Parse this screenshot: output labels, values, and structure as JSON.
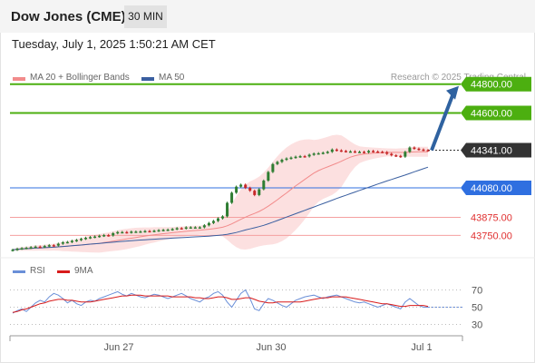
{
  "header": {
    "title": "Dow Jones (CME)",
    "timeframe": "30 MIN"
  },
  "datetime": "Tuesday, July 1, 2025 1:50:21 AM CET",
  "legend": {
    "ma20": "MA 20 + Bollinger Bands",
    "ma50": "MA 50",
    "credit": "Research © 2025 Trading Central"
  },
  "rsi_legend": {
    "rsi": "RSI",
    "ma9": "9MA"
  },
  "colors": {
    "up": "#2e7d32",
    "down": "#c62828",
    "ma20": "#f28b8b",
    "ma50": "#3a5fa0",
    "band": "#fbdada",
    "resistance": "#4caf10",
    "support": "#2f6fe0",
    "rsi": "#6a8fd8",
    "ma9": "#d81b1b",
    "arrow": "#2f62a0"
  },
  "chart_data": [
    {
      "type": "candlestick",
      "x_ticks": [
        "Jun 27",
        "Jun 30",
        "Jul 1"
      ],
      "price_range": [
        43620,
        44880
      ],
      "levels": [
        {
          "value": "44800.00",
          "kind": "resistance"
        },
        {
          "value": "44600.00",
          "kind": "resistance"
        },
        {
          "value": "44341.00",
          "kind": "current"
        },
        {
          "value": "44080.00",
          "kind": "support"
        },
        {
          "value": "43875.00",
          "kind": "minor"
        },
        {
          "value": "43750.00",
          "kind": "minor"
        }
      ],
      "arrow": {
        "from": 44341,
        "to": 44800
      },
      "close_series": [
        43650,
        43657,
        43661,
        43664,
        43668,
        43672,
        43670,
        43676,
        43682,
        43679,
        43692,
        43702,
        43704,
        43712,
        43718,
        43726,
        43733,
        43738,
        43742,
        43747,
        43752,
        43749,
        43765,
        43773,
        43773,
        43770,
        43776,
        43776,
        43777,
        43780,
        43779,
        43782,
        43786,
        43788,
        43790,
        43794,
        43800,
        43798,
        43806,
        43806,
        43806,
        43806,
        43820,
        43836,
        43850,
        43868,
        43882,
        43976,
        44046,
        44088,
        44102,
        44080,
        44060,
        44030,
        44070,
        44130,
        44190,
        44245,
        44260,
        44275,
        44284,
        44290,
        44296,
        44300,
        44298,
        44310,
        44318,
        44320,
        44324,
        44330,
        44346,
        44340,
        44336,
        44333,
        44333,
        44330,
        44330,
        44326,
        44336,
        44332,
        44330,
        44328,
        44316,
        44306,
        44302,
        44296,
        44330,
        44360,
        44352,
        44346,
        44342,
        44341
      ]
    },
    {
      "type": "line",
      "name": "RSI",
      "y_ticks": [
        "70",
        "50",
        "30"
      ],
      "ylim": [
        20,
        80
      ],
      "series": [
        {
          "name": "RSI",
          "values": [
            43,
            46,
            48,
            45,
            50,
            55,
            58,
            56,
            62,
            66,
            64,
            60,
            55,
            58,
            54,
            52,
            56,
            58,
            57,
            60,
            62,
            64,
            66,
            68,
            65,
            63,
            66,
            64,
            62,
            61,
            63,
            65,
            64,
            62,
            60,
            62,
            64,
            66,
            63,
            60,
            58,
            56,
            60,
            62,
            66,
            68,
            64,
            56,
            50,
            58,
            66,
            70,
            60,
            48,
            46,
            54,
            60,
            58,
            55,
            52,
            50,
            54,
            58,
            60,
            62,
            63,
            64,
            62,
            60,
            62,
            63,
            64,
            62,
            60,
            58,
            56,
            55,
            56,
            54,
            52,
            50,
            52,
            54,
            52,
            50,
            48,
            56,
            60,
            56,
            52,
            50,
            50
          ]
        },
        {
          "name": "9MA",
          "values": [
            44,
            45,
            47,
            48,
            50,
            52,
            54,
            55,
            57,
            58,
            59,
            59,
            58,
            58,
            57,
            56,
            56,
            56,
            57,
            58,
            59,
            60,
            61,
            62,
            63,
            63,
            64,
            64,
            64,
            63,
            63,
            63,
            63,
            63,
            63,
            62,
            62,
            62,
            62,
            62,
            61,
            61,
            60,
            60,
            61,
            62,
            62,
            61,
            59,
            59,
            60,
            61,
            61,
            59,
            57,
            56,
            55,
            55,
            56,
            56,
            56,
            56,
            56,
            56,
            57,
            58,
            59,
            60,
            61,
            61,
            62,
            62,
            62,
            62,
            61,
            60,
            59,
            58,
            57,
            56,
            55,
            54,
            54,
            53,
            52,
            51,
            51,
            52,
            52,
            52,
            52,
            51
          ]
        }
      ]
    }
  ]
}
